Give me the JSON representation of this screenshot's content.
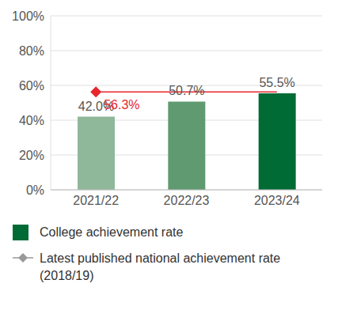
{
  "chart_data": {
    "type": "bar",
    "categories": [
      "2021/22",
      "2022/23",
      "2023/24"
    ],
    "series": [
      {
        "name": "College achievement rate",
        "type": "bar",
        "values": [
          42.0,
          50.7,
          55.5
        ],
        "colors": [
          "#8fb89b",
          "#5f9a70",
          "#006b35"
        ],
        "value_labels": [
          "42.0%",
          "50.7%",
          "55.5%"
        ]
      },
      {
        "name": "Latest published national achievement rate (2018/19)",
        "type": "line",
        "color": "#e8262d",
        "marker": "diamond",
        "values": [
          56.3,
          56.3,
          56.3
        ],
        "value_labels": [
          "56.3%",
          null,
          null
        ]
      }
    ],
    "ylim": [
      0,
      100
    ],
    "yticks": [
      {
        "value": 0,
        "label": "0%"
      },
      {
        "value": 20,
        "label": "20%"
      },
      {
        "value": 40,
        "label": "40%"
      },
      {
        "value": 60,
        "label": "60%"
      },
      {
        "value": 80,
        "label": "80%"
      },
      {
        "value": 100,
        "label": "100%"
      }
    ],
    "grid": true,
    "data_labels": true
  }
}
